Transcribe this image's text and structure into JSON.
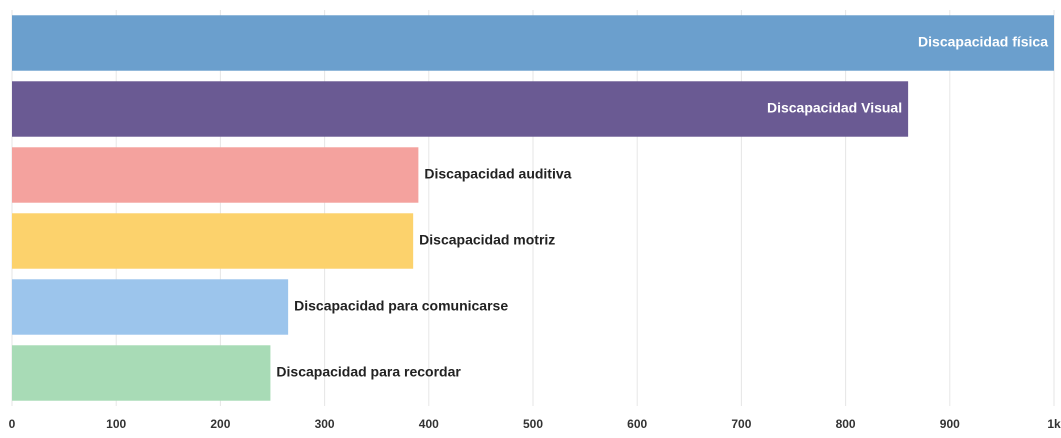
{
  "chart_data": {
    "type": "bar",
    "orientation": "horizontal",
    "categories": [
      "Discapacidad física",
      "Discapacidad Visual",
      "Discapacidad auditiva",
      "Discapacidad motriz",
      "Discapacidad para comunicarse",
      "Discapacidad para recordar"
    ],
    "values": [
      1000,
      860,
      390,
      385,
      265,
      248
    ],
    "colors": [
      "#6b9fcd",
      "#6a5a93",
      "#f4a29e",
      "#fcd26c",
      "#9cc5ec",
      "#a8dbb6"
    ],
    "xlim": [
      0,
      1000
    ],
    "xticks": [
      0,
      100,
      200,
      300,
      400,
      500,
      600,
      700,
      800,
      900,
      {
        "value": 1000,
        "label": "1k"
      }
    ],
    "grid": true
  }
}
